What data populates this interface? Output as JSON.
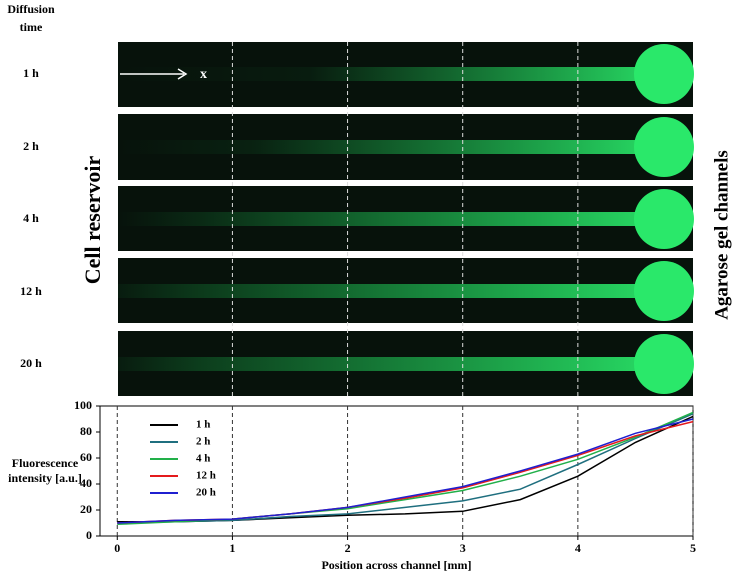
{
  "header": {
    "lines": [
      "Diffusion",
      "time"
    ]
  },
  "rows": [
    "1 h",
    "2 h",
    "4 h",
    "12 h",
    "20 h"
  ],
  "axis_arrow": "x",
  "left_label": "Cell reservoir",
  "right_label": "Agarose gel channels",
  "chart_data": {
    "type": "line",
    "xlabel": "Position across channel [mm]",
    "ylabel": [
      "Fluorescence",
      "intensity [a.u.]"
    ],
    "x": [
      0,
      0.5,
      1,
      1.5,
      2,
      2.5,
      3,
      3.5,
      4,
      4.5,
      5
    ],
    "series": [
      {
        "name": "1 h",
        "color": "#000000",
        "values": [
          11,
          11,
          12,
          14,
          16,
          17,
          19,
          28,
          46,
          72,
          92
        ]
      },
      {
        "name": "2 h",
        "color": "#1f6f7f",
        "values": [
          10,
          11,
          12,
          15,
          17,
          22,
          27,
          36,
          55,
          75,
          94
        ]
      },
      {
        "name": "4 h",
        "color": "#22b04a",
        "values": [
          9,
          11,
          13,
          17,
          21,
          28,
          35,
          46,
          59,
          76,
          95
        ]
      },
      {
        "name": "12 h",
        "color": "#e41a1c",
        "values": [
          10,
          12,
          13,
          17,
          22,
          29,
          37,
          49,
          62,
          77,
          88
        ]
      },
      {
        "name": "20 h",
        "color": "#1f1fd0",
        "values": [
          10,
          12,
          13,
          17,
          22,
          30,
          38,
          50,
          63,
          79,
          90
        ]
      }
    ],
    "xlim": [
      -0.15,
      5
    ],
    "ylim": [
      0,
      100
    ],
    "xticks": [
      0,
      1,
      2,
      3,
      4,
      5
    ],
    "yticks": [
      0,
      20,
      40,
      60,
      80,
      100
    ],
    "grid": true
  }
}
